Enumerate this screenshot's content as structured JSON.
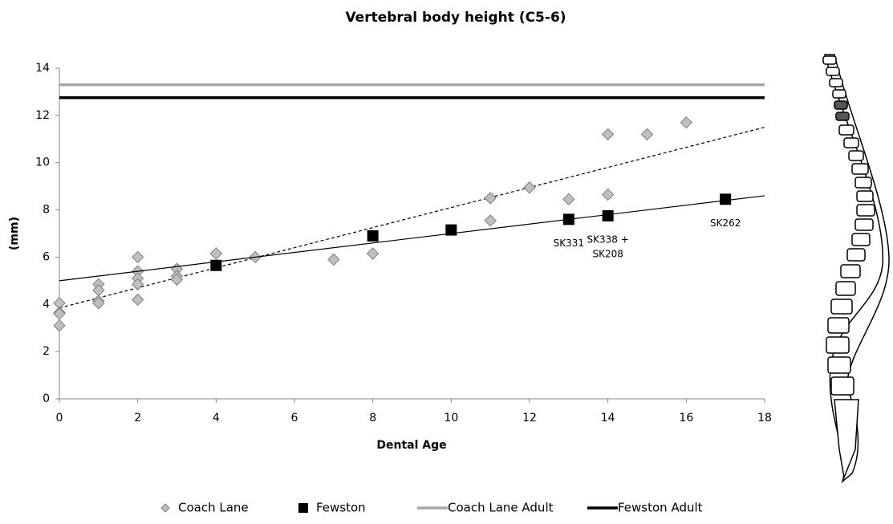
{
  "chart_data": {
    "type": "scatter",
    "title": "Vertebral body height (C5-6)",
    "x_label": "Dental Age",
    "y_label": "(mm)",
    "xlim": [
      0,
      18
    ],
    "xticks": [
      0,
      2,
      4,
      6,
      8,
      10,
      12,
      14,
      16,
      18
    ],
    "ylim": [
      0,
      14
    ],
    "yticks": [
      0,
      2,
      4,
      6,
      8,
      10,
      12,
      14
    ],
    "grid": false,
    "legend": "bottom",
    "series": [
      {
        "name": "Coach Lane",
        "color": "#bfbfbf",
        "marker": "diamond",
        "x": [
          0,
          0,
          0,
          0,
          1,
          1,
          1,
          1,
          2,
          2,
          2,
          2,
          2,
          3,
          3,
          3,
          4,
          5,
          7,
          8,
          11,
          11,
          12,
          13,
          14,
          14,
          15,
          16
        ],
        "values": [
          4.05,
          3.65,
          3.1,
          3.6,
          4.85,
          4.6,
          4.15,
          4.05,
          6.0,
          5.4,
          5.1,
          4.85,
          4.2,
          5.5,
          5.2,
          5.05,
          6.15,
          6.0,
          5.9,
          6.15,
          8.5,
          7.55,
          8.95,
          8.45,
          11.2,
          8.65,
          11.2,
          11.7
        ],
        "trendline": {
          "x": [
            0,
            18
          ],
          "values": [
            3.85,
            11.5
          ],
          "dash": true
        }
      },
      {
        "name": "Fewston",
        "color": "#000000",
        "marker": "square",
        "x": [
          4,
          8,
          10,
          13,
          14,
          17
        ],
        "values": [
          5.65,
          6.9,
          7.15,
          7.6,
          7.75,
          8.45
        ],
        "trendline": {
          "x": [
            0,
            18
          ],
          "values": [
            5.0,
            8.6
          ],
          "dash": false
        }
      },
      {
        "name": "Coach Lane Adult",
        "color": "#a6a6a6",
        "marker": "hline",
        "values": [
          13.3
        ]
      },
      {
        "name": "Fewston Adult",
        "color": "#000000",
        "marker": "hline",
        "values": [
          12.75
        ]
      }
    ],
    "annotations": [
      {
        "lines": [
          "SK331"
        ],
        "x": 13,
        "y": 7.6
      },
      {
        "lines": [
          "SK338 +",
          "SK208"
        ],
        "x": 14,
        "y": 7.75
      },
      {
        "lines": [
          "SK262"
        ],
        "x": 17,
        "y": 8.45
      }
    ]
  }
}
